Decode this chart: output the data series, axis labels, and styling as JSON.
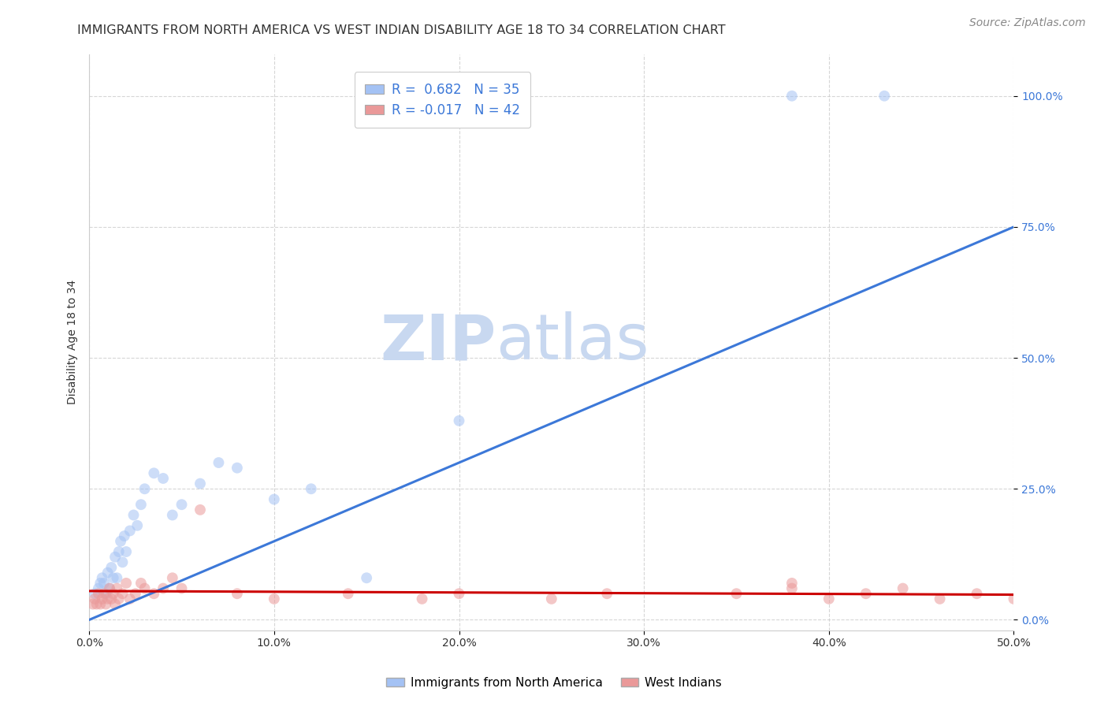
{
  "title": "IMMIGRANTS FROM NORTH AMERICA VS WEST INDIAN DISABILITY AGE 18 TO 34 CORRELATION CHART",
  "source": "Source: ZipAtlas.com",
  "ylabel": "Disability Age 18 to 34",
  "xlim": [
    0.0,
    0.5
  ],
  "ylim": [
    -0.02,
    1.08
  ],
  "xticks": [
    0.0,
    0.1,
    0.2,
    0.3,
    0.4,
    0.5
  ],
  "xticklabels": [
    "0.0%",
    "10.0%",
    "20.0%",
    "30.0%",
    "40.0%",
    "50.0%"
  ],
  "ytick_vals": [
    0.0,
    0.25,
    0.5,
    0.75,
    1.0
  ],
  "yticklabels": [
    "0.0%",
    "25.0%",
    "50.0%",
    "75.0%",
    "100.0%"
  ],
  "watermark_zip": "ZIP",
  "watermark_atlas": "atlas",
  "blue_color": "#a4c2f4",
  "pink_color": "#ea9999",
  "blue_line_color": "#3c78d8",
  "pink_line_color": "#cc0000",
  "R_blue": "0.682",
  "N_blue": "35",
  "R_pink": "-0.017",
  "N_pink": "42",
  "blue_scatter_x": [
    0.003,
    0.005,
    0.006,
    0.007,
    0.008,
    0.009,
    0.01,
    0.011,
    0.012,
    0.013,
    0.014,
    0.015,
    0.016,
    0.017,
    0.018,
    0.019,
    0.02,
    0.022,
    0.024,
    0.026,
    0.028,
    0.03,
    0.035,
    0.04,
    0.045,
    0.05,
    0.06,
    0.07,
    0.08,
    0.1,
    0.12,
    0.15,
    0.2,
    0.38,
    0.43
  ],
  "blue_scatter_y": [
    0.05,
    0.06,
    0.07,
    0.08,
    0.07,
    0.05,
    0.09,
    0.06,
    0.1,
    0.08,
    0.12,
    0.08,
    0.13,
    0.15,
    0.11,
    0.16,
    0.13,
    0.17,
    0.2,
    0.18,
    0.22,
    0.25,
    0.28,
    0.27,
    0.2,
    0.22,
    0.26,
    0.3,
    0.29,
    0.23,
    0.25,
    0.08,
    0.38,
    1.0,
    1.0
  ],
  "pink_scatter_x": [
    0.002,
    0.003,
    0.004,
    0.005,
    0.006,
    0.007,
    0.008,
    0.009,
    0.01,
    0.011,
    0.012,
    0.013,
    0.014,
    0.015,
    0.016,
    0.018,
    0.02,
    0.022,
    0.025,
    0.028,
    0.03,
    0.035,
    0.04,
    0.045,
    0.05,
    0.06,
    0.08,
    0.1,
    0.14,
    0.18,
    0.2,
    0.25,
    0.28,
    0.35,
    0.38,
    0.4,
    0.42,
    0.44,
    0.46,
    0.48,
    0.5,
    0.38
  ],
  "pink_scatter_y": [
    0.03,
    0.04,
    0.03,
    0.05,
    0.03,
    0.04,
    0.05,
    0.03,
    0.04,
    0.06,
    0.04,
    0.05,
    0.03,
    0.06,
    0.04,
    0.05,
    0.07,
    0.04,
    0.05,
    0.07,
    0.06,
    0.05,
    0.06,
    0.08,
    0.06,
    0.21,
    0.05,
    0.04,
    0.05,
    0.04,
    0.05,
    0.04,
    0.05,
    0.05,
    0.07,
    0.04,
    0.05,
    0.06,
    0.04,
    0.05,
    0.04,
    0.06
  ],
  "blue_trendline_x": [
    0.0,
    0.5
  ],
  "blue_trendline_y": [
    0.0,
    0.75
  ],
  "pink_trendline_x": [
    0.0,
    0.5
  ],
  "pink_trendline_y": [
    0.055,
    0.048
  ],
  "title_fontsize": 11.5,
  "axis_label_fontsize": 10,
  "tick_fontsize": 10,
  "source_fontsize": 10,
  "scatter_size": 100,
  "scatter_alpha": 0.55,
  "background_color": "#ffffff",
  "grid_color": "#cccccc",
  "grid_alpha": 0.8,
  "tick_color_blue": "#3c78d8",
  "legend_text_color": "#3c78d8",
  "legend_r_color": "#000000"
}
